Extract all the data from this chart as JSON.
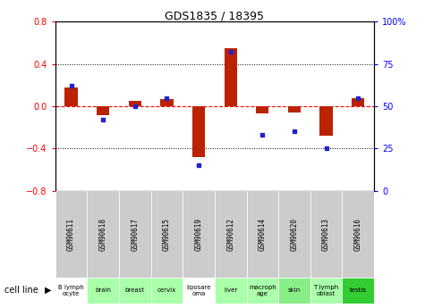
{
  "title": "GDS1835 / 18395",
  "samples": [
    "GSM90611",
    "GSM90618",
    "GSM90617",
    "GSM90615",
    "GSM90619",
    "GSM90612",
    "GSM90614",
    "GSM90620",
    "GSM90613",
    "GSM90616"
  ],
  "cell_lines": [
    "B lymph\nocyte",
    "brain",
    "breast",
    "cervix",
    "liposare\noma",
    "liver",
    "macroph\nage",
    "skin",
    "T lymph\noblast",
    "testis"
  ],
  "log2_ratio": [
    0.18,
    -0.08,
    0.05,
    0.07,
    -0.48,
    0.55,
    -0.07,
    -0.06,
    -0.28,
    0.08
  ],
  "percentile_rank": [
    62,
    42,
    50,
    55,
    15,
    82,
    33,
    35,
    25,
    55
  ],
  "bar_color": "#bb2200",
  "dot_color": "#2222cc",
  "left_ylim": [
    -0.8,
    0.8
  ],
  "right_ylim": [
    0,
    100
  ],
  "left_yticks": [
    -0.8,
    -0.4,
    0.0,
    0.4,
    0.8
  ],
  "right_yticks": [
    0,
    25,
    50,
    75,
    100
  ],
  "right_yticklabels": [
    "0",
    "25",
    "50",
    "75",
    "100%"
  ],
  "cell_bg_white": [
    0,
    4
  ],
  "cell_bg_light": [
    1,
    2,
    3,
    5,
    6,
    8
  ],
  "cell_bg_medium": [
    7
  ],
  "cell_bg_green": [
    9
  ],
  "bg_color_white": "#ffffff",
  "bg_color_light": "#aaffaa",
  "bg_color_medium": "#88ee88",
  "bg_color_green": "#33cc33",
  "gsm_bg": "#cccccc"
}
